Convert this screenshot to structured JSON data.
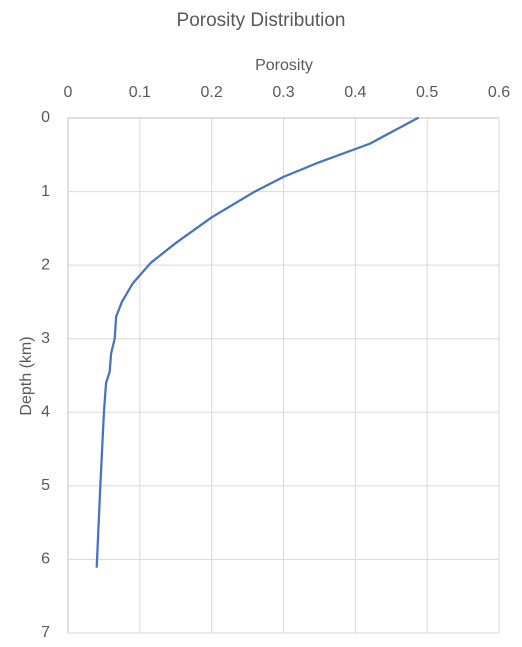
{
  "chart_data": {
    "type": "line",
    "title": "Porosity Distribution",
    "x_label": "Porosity",
    "y_label": "Depth (km)",
    "x": [
      0.487,
      0.42,
      0.35,
      0.3,
      0.26,
      0.2,
      0.15,
      0.115,
      0.09,
      0.075,
      0.067,
      0.065,
      0.06,
      0.058,
      0.053,
      0.05,
      0.045,
      0.04
    ],
    "series": [
      {
        "name": "Depth",
        "color": "#4472c4",
        "values": [
          0,
          0.35,
          0.6,
          0.8,
          1.0,
          1.35,
          1.7,
          1.97,
          2.25,
          2.5,
          2.7,
          3.0,
          3.2,
          3.45,
          3.6,
          4.0,
          5.0,
          6.1
        ]
      }
    ],
    "xlim": [
      0,
      0.6
    ],
    "xticks": [
      0,
      0.1,
      0.2,
      0.3,
      0.4,
      0.5,
      0.6
    ],
    "ylim": [
      0,
      7
    ],
    "yticks": [
      0,
      1,
      2,
      3,
      4,
      5,
      6,
      7
    ],
    "y_reversed": true,
    "x_axis_position": "top",
    "grid": true
  }
}
